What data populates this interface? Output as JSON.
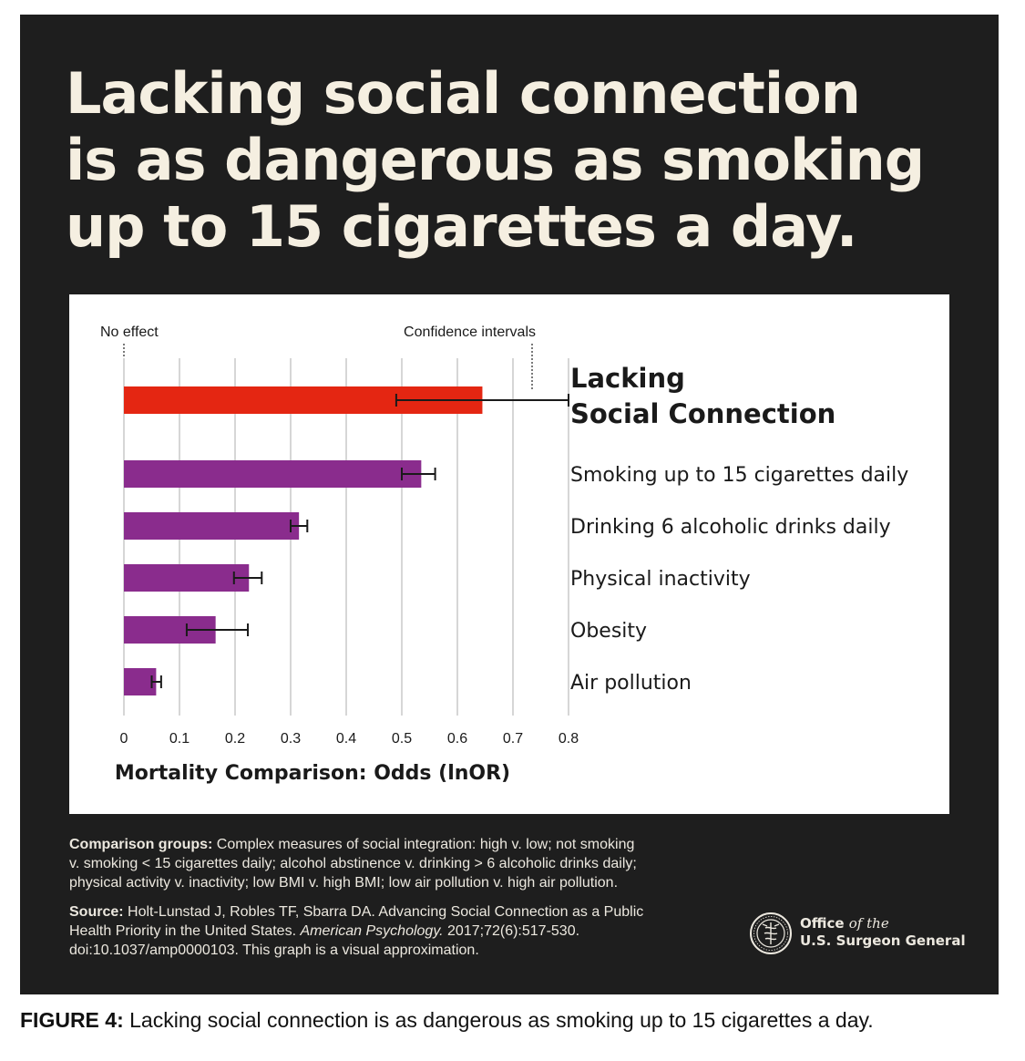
{
  "headline": {
    "line1": "Lacking social connection",
    "line2": "is as dangerous as smoking",
    "line3": "up to 15 cigarettes a day."
  },
  "chart_data": {
    "type": "bar",
    "orientation": "horizontal",
    "xlabel": "Mortality Comparison: Odds (lnOR)",
    "xlim": [
      0,
      0.8
    ],
    "xticks": [
      "0",
      "0.1",
      "0.2",
      "0.3",
      "0.4",
      "0.5",
      "0.6",
      "0.7",
      "0.8"
    ],
    "grid": true,
    "annotations": {
      "no_effect": "No effect",
      "confidence_intervals": "Confidence intervals"
    },
    "categories": [
      "Lacking Social Connection",
      "Smoking up to 15 cigarettes daily",
      "Drinking 6 alcoholic drinks daily",
      "Physical inactivity",
      "Obesity",
      "Air pollution"
    ],
    "highlight_label_lines": [
      "Lacking",
      "Social Connection"
    ],
    "values": [
      0.645,
      0.535,
      0.315,
      0.225,
      0.165,
      0.058
    ],
    "ci_low": [
      0.49,
      0.5,
      0.3,
      0.198,
      0.113,
      0.05
    ],
    "ci_high": [
      0.8,
      0.56,
      0.33,
      0.248,
      0.223,
      0.067
    ],
    "colors": {
      "highlight": "#e42612",
      "bars": "#8a2c8d",
      "grid": "#c8c8c8",
      "axis": "#1a1a1a"
    }
  },
  "notes": {
    "comparison_label": "Comparison groups:",
    "comparison_lines": [
      "Complex measures of social integration: high v. low; not smoking",
      "v. smoking < 15 cigarettes daily; alcohol abstinence v. drinking > 6 alcoholic drinks daily;",
      "physical activity v. inactivity; low BMI v. high BMI; low air pollution v. high air pollution."
    ],
    "source_label": "Source:",
    "source_line1": "Holt-Lunstad J, Robles TF, Sbarra DA. Advancing Social Connection as a Public",
    "source_line2_pre": "Health Priority in the United States.",
    "source_journal": "American Psychology.",
    "source_line2_post": "2017;72(6):517-530.",
    "source_line3": "doi:10.1037/amp0000103. This graph is a visual approximation."
  },
  "office": {
    "office": "Office",
    "of_the": "of the",
    "name": "U.S. Surgeon General",
    "seal_icon": "surgeon-general-seal-icon"
  },
  "caption": {
    "label": "FIGURE 4:",
    "text": "Lacking social connection is as dangerous as smoking up to 15 cigarettes a day."
  }
}
